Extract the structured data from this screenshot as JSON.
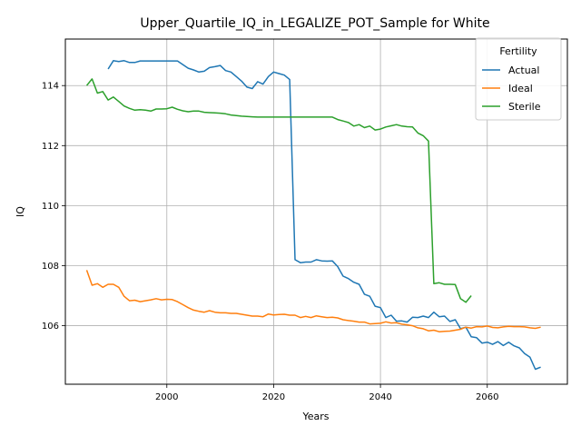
{
  "chart_data": {
    "type": "line",
    "title": "Upper_Quartile_IQ_in_LEGALIZE_POT_Sample for White",
    "xlabel": "Years",
    "ylabel": "IQ",
    "xlim": [
      1981,
      2075
    ],
    "ylim": [
      104.05,
      115.55
    ],
    "xticks": [
      2000,
      2020,
      2040,
      2060
    ],
    "yticks": [
      106,
      108,
      110,
      112,
      114
    ],
    "grid": true,
    "legend": {
      "title": "Fertility",
      "placement": "top-right"
    },
    "series": [
      {
        "name": "Actual",
        "color": "#1f77b4",
        "x": [
          1989,
          1990,
          1991,
          1992,
          1993,
          1994,
          1995,
          1996,
          1997,
          1998,
          1999,
          2000,
          2001,
          2002,
          2003,
          2004,
          2005,
          2006,
          2007,
          2008,
          2009,
          2010,
          2011,
          2012,
          2013,
          2014,
          2015,
          2016,
          2017,
          2018,
          2019,
          2020,
          2021,
          2022,
          2023,
          2024,
          2025,
          2026,
          2027,
          2028,
          2029,
          2030,
          2031,
          2032,
          2033,
          2034,
          2035,
          2036,
          2037,
          2038,
          2039,
          2040,
          2041,
          2042,
          2043,
          2044,
          2045,
          2046,
          2047,
          2048,
          2049,
          2050,
          2051,
          2052,
          2053,
          2054,
          2055,
          2056,
          2057,
          2058,
          2059,
          2060,
          2061,
          2062,
          2063,
          2064,
          2065,
          2066,
          2067,
          2068,
          2069,
          2070
        ],
        "values": [
          114.55,
          114.83,
          114.8,
          114.83,
          114.77,
          114.77,
          114.82,
          114.82,
          114.82,
          114.82,
          114.82,
          114.82,
          114.82,
          114.82,
          114.7,
          114.58,
          114.52,
          114.45,
          114.48,
          114.6,
          114.63,
          114.67,
          114.5,
          114.45,
          114.3,
          114.15,
          113.95,
          113.9,
          114.13,
          114.05,
          114.3,
          114.45,
          114.4,
          114.35,
          114.2,
          108.2,
          108.1,
          108.12,
          108.12,
          108.2,
          108.16,
          108.15,
          108.16,
          107.97,
          107.65,
          107.57,
          107.45,
          107.38,
          107.05,
          106.98,
          106.65,
          106.6,
          106.27,
          106.35,
          106.15,
          106.16,
          106.12,
          106.28,
          106.27,
          106.32,
          106.27,
          106.45,
          106.3,
          106.32,
          106.14,
          106.2,
          105.9,
          105.95,
          105.63,
          105.6,
          105.42,
          105.45,
          105.38,
          105.47,
          105.34,
          105.45,
          105.33,
          105.26,
          105.07,
          104.95,
          104.55,
          104.62
        ]
      },
      {
        "name": "Ideal",
        "color": "#ff7f0e",
        "x": [
          1985,
          1986,
          1987,
          1988,
          1989,
          1990,
          1991,
          1992,
          1993,
          1994,
          1995,
          1996,
          1997,
          1998,
          1999,
          2000,
          2001,
          2002,
          2003,
          2004,
          2005,
          2006,
          2007,
          2008,
          2009,
          2010,
          2011,
          2012,
          2013,
          2014,
          2015,
          2016,
          2017,
          2018,
          2019,
          2020,
          2021,
          2022,
          2023,
          2024,
          2025,
          2026,
          2027,
          2028,
          2029,
          2030,
          2031,
          2032,
          2033,
          2034,
          2035,
          2036,
          2037,
          2038,
          2039,
          2040,
          2041,
          2042,
          2043,
          2044,
          2045,
          2046,
          2047,
          2048,
          2049,
          2050,
          2051,
          2052,
          2053,
          2054,
          2055,
          2056,
          2057,
          2058,
          2059,
          2060,
          2061,
          2062,
          2063,
          2064,
          2065,
          2066,
          2067,
          2068,
          2069,
          2070
        ],
        "values": [
          107.85,
          107.35,
          107.4,
          107.28,
          107.38,
          107.38,
          107.28,
          106.98,
          106.83,
          106.85,
          106.8,
          106.83,
          106.86,
          106.9,
          106.86,
          106.88,
          106.87,
          106.8,
          106.7,
          106.6,
          106.52,
          106.48,
          106.45,
          106.5,
          106.45,
          106.43,
          106.43,
          106.41,
          106.41,
          106.38,
          106.35,
          106.32,
          106.32,
          106.3,
          106.39,
          106.36,
          106.37,
          106.38,
          106.35,
          106.35,
          106.27,
          106.31,
          106.27,
          106.33,
          106.3,
          106.27,
          106.28,
          106.26,
          106.2,
          106.17,
          106.15,
          106.12,
          106.12,
          106.06,
          106.07,
          106.08,
          106.13,
          106.09,
          106.1,
          106.05,
          106.03,
          106.0,
          105.93,
          105.9,
          105.83,
          105.85,
          105.8,
          105.81,
          105.82,
          105.85,
          105.88,
          105.95,
          105.92,
          105.97,
          105.96,
          105.99,
          105.94,
          105.93,
          105.96,
          105.98,
          105.97,
          105.97,
          105.96,
          105.93,
          105.91,
          105.95
        ]
      },
      {
        "name": "Sterile",
        "color": "#2ca02c",
        "x": [
          1985,
          1986,
          1987,
          1988,
          1989,
          1990,
          1991,
          1992,
          1993,
          1994,
          1995,
          1996,
          1997,
          1998,
          1999,
          2000,
          2001,
          2002,
          2003,
          2004,
          2005,
          2006,
          2007,
          2008,
          2009,
          2010,
          2011,
          2012,
          2013,
          2014,
          2015,
          2016,
          2017,
          2018,
          2019,
          2020,
          2021,
          2022,
          2023,
          2024,
          2025,
          2026,
          2027,
          2028,
          2029,
          2030,
          2031,
          2032,
          2033,
          2034,
          2035,
          2036,
          2037,
          2038,
          2039,
          2040,
          2041,
          2042,
          2043,
          2044,
          2045,
          2046,
          2047,
          2048,
          2049,
          2050,
          2051,
          2052,
          2053,
          2054,
          2055,
          2056,
          2057
        ],
        "values": [
          114.0,
          114.22,
          113.75,
          113.8,
          113.52,
          113.62,
          113.47,
          113.32,
          113.24,
          113.18,
          113.2,
          113.18,
          113.15,
          113.22,
          113.22,
          113.23,
          113.28,
          113.21,
          113.16,
          113.13,
          113.15,
          113.15,
          113.11,
          113.1,
          113.09,
          113.08,
          113.06,
          113.02,
          113.0,
          112.98,
          112.97,
          112.96,
          112.95,
          112.95,
          112.95,
          112.95,
          112.95,
          112.95,
          112.95,
          112.95,
          112.95,
          112.95,
          112.95,
          112.95,
          112.95,
          112.95,
          112.95,
          112.87,
          112.82,
          112.77,
          112.65,
          112.7,
          112.6,
          112.65,
          112.52,
          112.55,
          112.62,
          112.66,
          112.7,
          112.65,
          112.63,
          112.62,
          112.42,
          112.33,
          112.15,
          107.4,
          107.43,
          107.38,
          107.38,
          107.37,
          106.9,
          106.78,
          107.0
        ]
      }
    ]
  }
}
